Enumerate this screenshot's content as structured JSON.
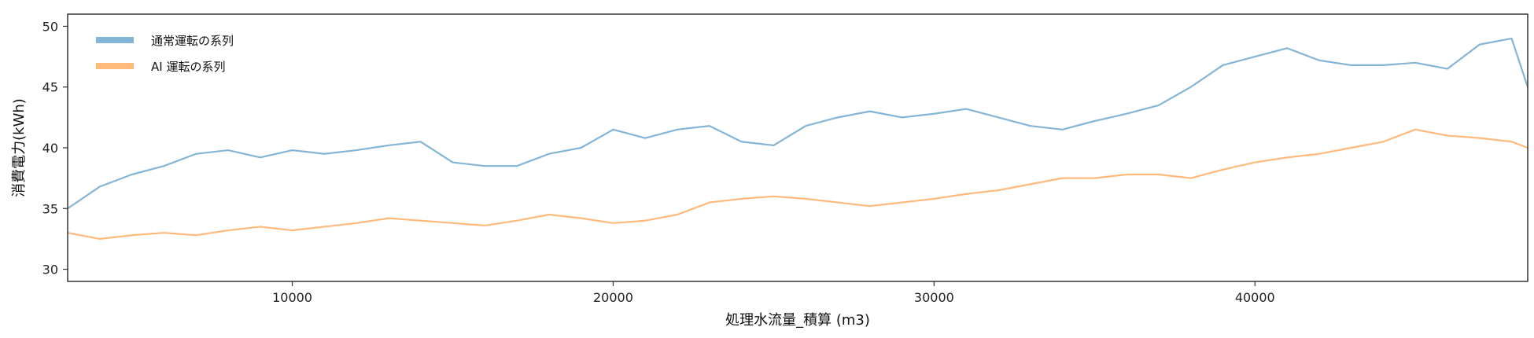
{
  "chart_data": {
    "type": "line",
    "xlabel": "処理水流量_積算 (m3)",
    "ylabel": "消費電力(kWh)",
    "xlim": [
      3000,
      48500
    ],
    "ylim": [
      29,
      51
    ],
    "x_ticks": [
      10000,
      20000,
      30000,
      40000
    ],
    "y_ticks": [
      30,
      35,
      40,
      45,
      50
    ],
    "grid": false,
    "legend_placement": "top-left",
    "series": [
      {
        "name": "通常運転の系列",
        "color": "#1f77b4",
        "x": [
          3000,
          4000,
          5000,
          6000,
          7000,
          8000,
          9000,
          10000,
          11000,
          12000,
          13000,
          14000,
          15000,
          16000,
          17000,
          18000,
          19000,
          20000,
          21000,
          22000,
          23000,
          24000,
          25000,
          26000,
          27000,
          28000,
          29000,
          30000,
          31000,
          32000,
          33000,
          34000,
          35000,
          36000,
          37000,
          38000,
          39000,
          40000,
          41000,
          42000,
          43000,
          44000,
          45000,
          46000,
          47000,
          48000,
          48500
        ],
        "values": [
          35,
          36.8,
          37.8,
          38.5,
          39.5,
          39.8,
          39.2,
          39.8,
          39.5,
          39.8,
          40.2,
          40.5,
          38.8,
          38.5,
          38.5,
          39.5,
          40,
          41.5,
          40.8,
          41.5,
          41.8,
          40.5,
          40.2,
          41.8,
          42.5,
          43,
          42.5,
          42.8,
          43.2,
          42.5,
          41.8,
          41.5,
          42.2,
          42.8,
          43.5,
          45,
          46.8,
          47.5,
          48.2,
          47.2,
          46.8,
          46.8,
          47,
          46.5,
          48.5,
          49,
          45
        ]
      },
      {
        "name": "AI 運転の系列",
        "color": "#ff7f0e",
        "x": [
          3000,
          4000,
          5000,
          6000,
          7000,
          8000,
          9000,
          10000,
          11000,
          12000,
          13000,
          14000,
          15000,
          16000,
          17000,
          18000,
          19000,
          20000,
          21000,
          22000,
          23000,
          24000,
          25000,
          26000,
          27000,
          28000,
          29000,
          30000,
          31000,
          32000,
          33000,
          34000,
          35000,
          36000,
          37000,
          38000,
          39000,
          40000,
          41000,
          42000,
          43000,
          44000,
          45000,
          46000,
          47000,
          48000,
          48500
        ],
        "values": [
          33,
          32.5,
          32.8,
          33,
          32.8,
          33.2,
          33.5,
          33.2,
          33.5,
          33.8,
          34.2,
          34,
          33.8,
          33.6,
          34,
          34.5,
          34.2,
          33.8,
          34,
          34.5,
          35.5,
          35.8,
          36,
          35.8,
          35.5,
          35.2,
          35.5,
          35.8,
          36.2,
          36.5,
          37,
          37.5,
          37.5,
          37.8,
          37.8,
          37.5,
          38.2,
          38.8,
          39.2,
          39.5,
          40,
          40.5,
          41.5,
          41,
          40.8,
          40.5,
          40
        ]
      }
    ]
  }
}
